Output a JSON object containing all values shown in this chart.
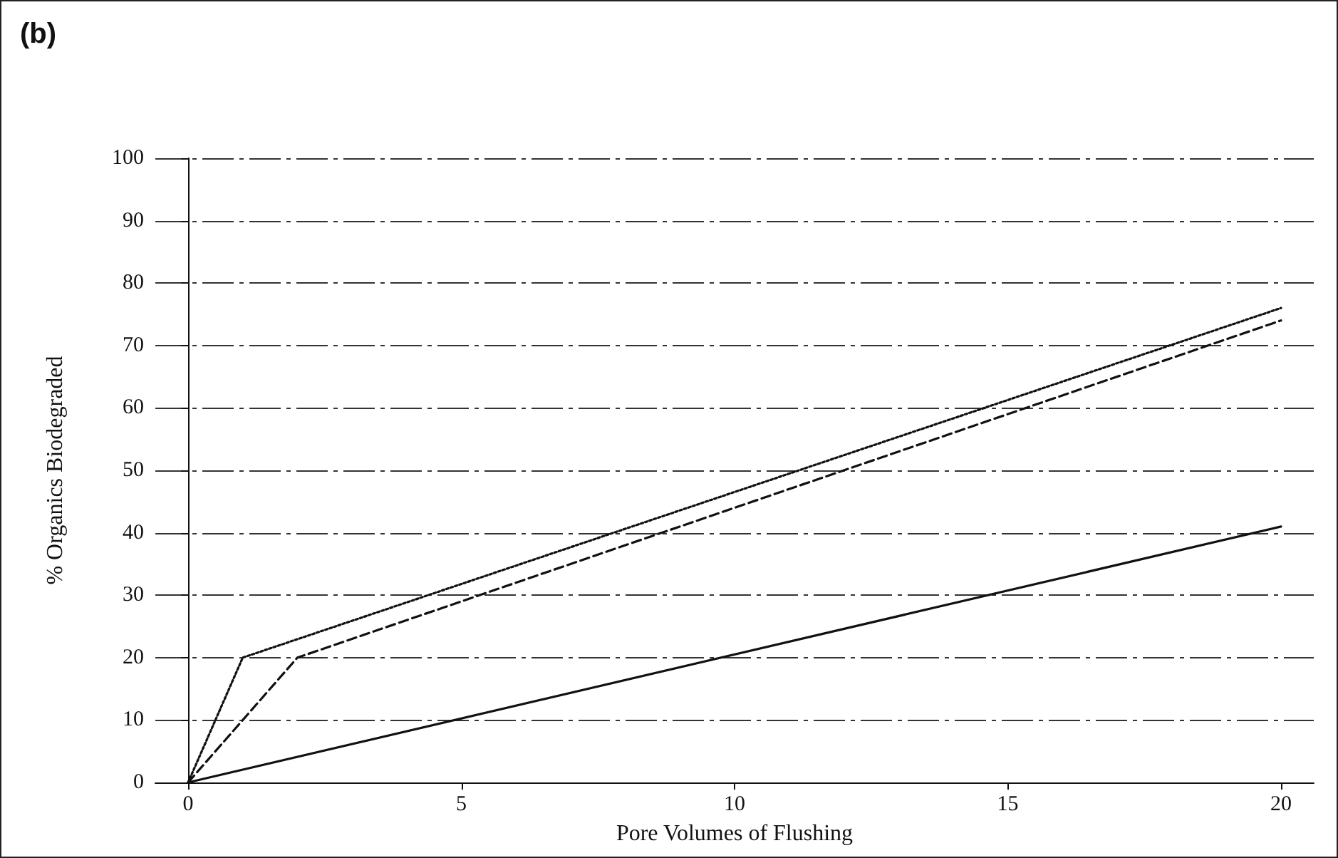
{
  "chart_data": {
    "type": "line",
    "title": "(b)",
    "xlabel": "Pore Volumes of Flushing",
    "ylabel": "% Organics Biodegraded",
    "xlim": [
      -0.6,
      20.6
    ],
    "xticks": [
      0,
      5,
      10,
      15,
      20
    ],
    "ylim": [
      0,
      100
    ],
    "yticks": [
      0,
      10,
      20,
      30,
      40,
      50,
      60,
      70,
      80,
      90,
      100
    ],
    "grid": "y",
    "marker": "none",
    "series": [
      {
        "color": "#111111",
        "line_style": "dotted",
        "x": [
          0,
          1,
          20
        ],
        "values": [
          0,
          20,
          76
        ]
      },
      {
        "color": "#111111",
        "line_style": "dashed",
        "x": [
          0,
          2,
          20
        ],
        "values": [
          0,
          20,
          74
        ]
      },
      {
        "color": "#111111",
        "line_style": "solid",
        "x": [
          0,
          20
        ],
        "values": [
          0,
          41
        ]
      }
    ]
  }
}
